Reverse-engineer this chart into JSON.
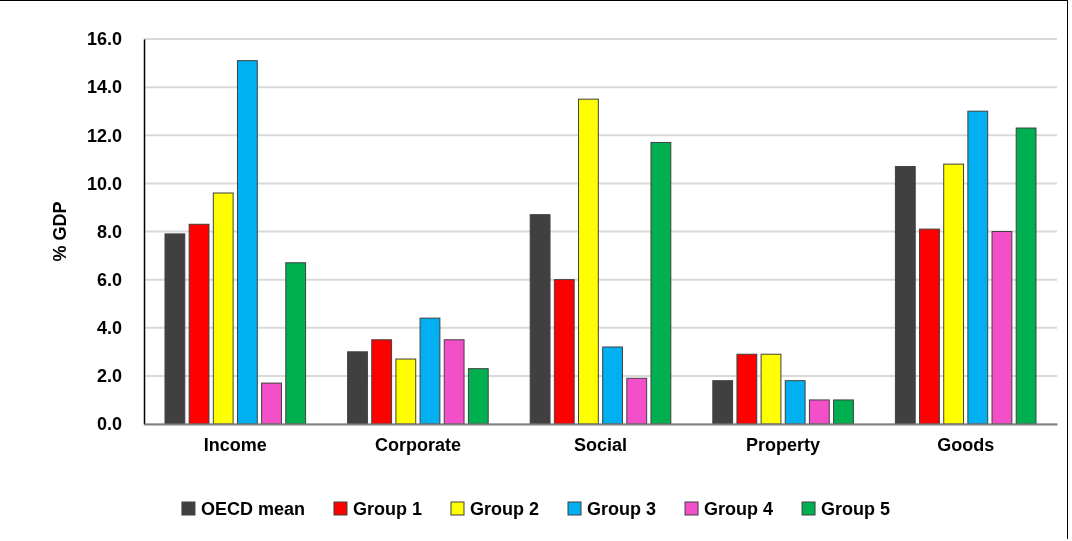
{
  "chart_data": {
    "type": "bar",
    "categories": [
      "Income",
      "Corporate",
      "Social",
      "Property",
      "Goods"
    ],
    "series": [
      {
        "name": "OECD mean",
        "color": "#404040",
        "values": [
          7.9,
          3.0,
          8.7,
          1.8,
          10.7
        ]
      },
      {
        "name": "Group 1",
        "color": "#ff0000",
        "values": [
          8.3,
          3.5,
          6.0,
          2.9,
          8.1
        ]
      },
      {
        "name": "Group 2",
        "color": "#ffff00",
        "values": [
          9.6,
          2.7,
          13.5,
          2.9,
          10.8
        ]
      },
      {
        "name": "Group 3",
        "color": "#00b0f0",
        "values": [
          15.1,
          4.4,
          3.2,
          1.8,
          13.0
        ]
      },
      {
        "name": "Group 4",
        "color": "#f34fc9",
        "values": [
          1.7,
          3.5,
          1.9,
          1.0,
          8.0
        ]
      },
      {
        "name": "Group 5",
        "color": "#00b050",
        "values": [
          6.7,
          2.3,
          11.7,
          1.0,
          12.3
        ]
      }
    ],
    "ylabel": "% GDP",
    "ylim": [
      0,
      16
    ],
    "yticks": [
      {
        "value": 0,
        "label": "0.0"
      },
      {
        "value": 2,
        "label": "2.0"
      },
      {
        "value": 4,
        "label": "4.0"
      },
      {
        "value": 6,
        "label": "6.0"
      },
      {
        "value": 8,
        "label": "8.0"
      },
      {
        "value": 10,
        "label": "10.0"
      },
      {
        "value": 12,
        "label": "12.0"
      },
      {
        "value": 14,
        "label": "14.0"
      },
      {
        "value": 16,
        "label": "16.0"
      }
    ],
    "grid": "y",
    "legend": "bottom"
  }
}
